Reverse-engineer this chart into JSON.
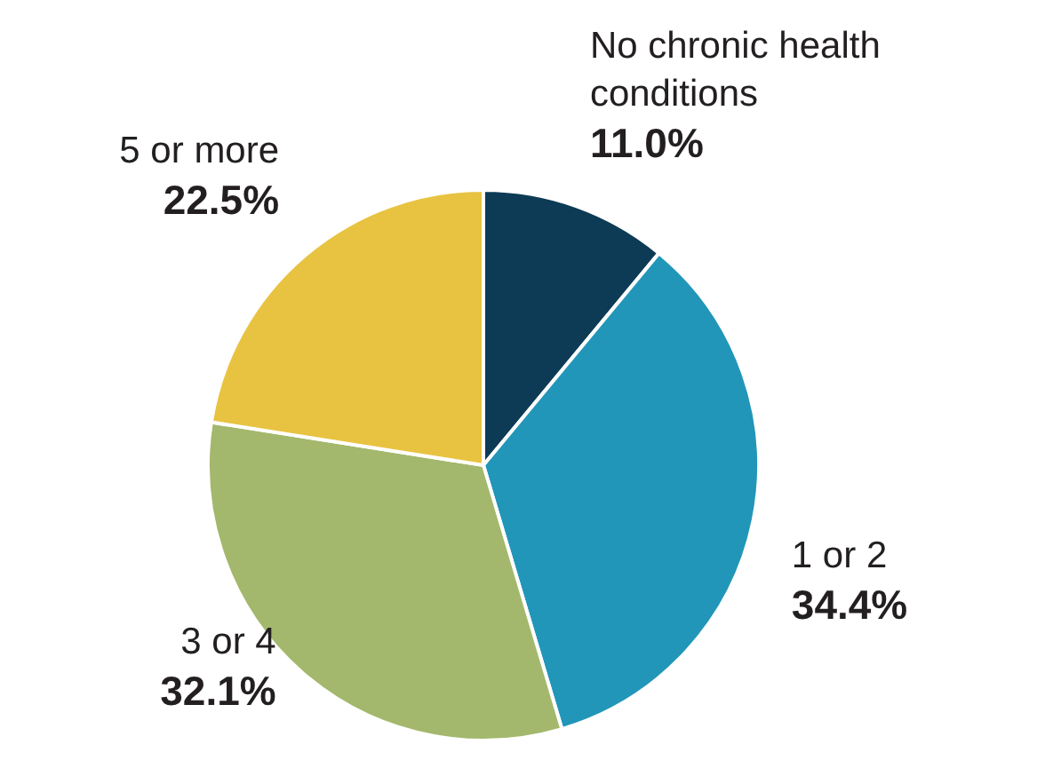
{
  "chart_data": {
    "type": "pie",
    "categories": [
      "No chronic health conditions",
      "1 or 2",
      "3 or 4",
      "5 or more"
    ],
    "values": [
      11.0,
      34.4,
      32.1,
      22.5
    ],
    "colors": [
      "#0d3b55",
      "#2196b9",
      "#a3b86c",
      "#e8c341"
    ],
    "value_labels": [
      "11.0%",
      "34.4%",
      "32.1%",
      "22.5%"
    ]
  }
}
